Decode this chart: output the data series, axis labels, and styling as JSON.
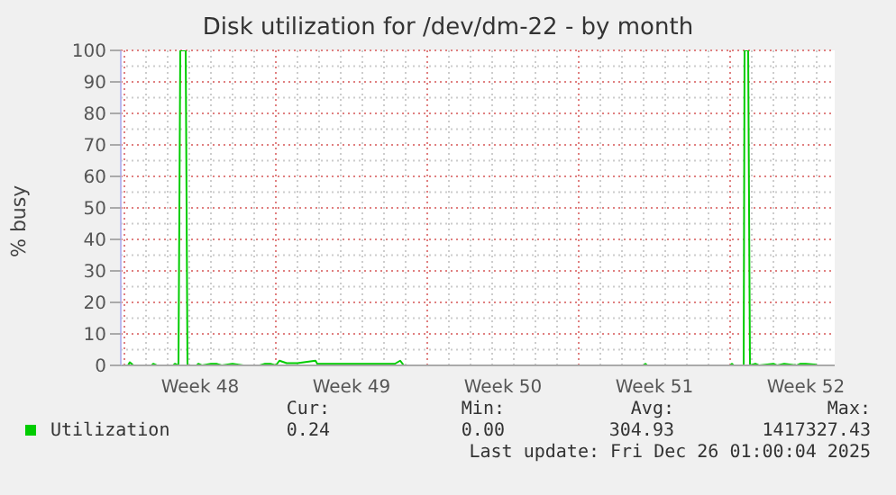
{
  "chart_data": {
    "type": "line",
    "title": "Disk utilization for /dev/dm-22 - by month",
    "ylabel": "% busy",
    "xlim": [
      "2025-11-23T20:00",
      "2025-12-26T20:00"
    ],
    "xticks": [
      {
        "value": "2025-11-27T12:00",
        "label": "Week 48"
      },
      {
        "value": "2025-12-04T12:00",
        "label": "Week 49"
      },
      {
        "value": "2025-12-11T12:00",
        "label": "Week 50"
      },
      {
        "value": "2025-12-18T12:00",
        "label": "Week 51"
      },
      {
        "value": "2025-12-25T12:00",
        "label": "Week 52"
      }
    ],
    "ylim": [
      0,
      100
    ],
    "yticks": [
      0,
      10,
      20,
      30,
      40,
      50,
      60,
      70,
      80,
      90,
      100
    ],
    "grid": true,
    "legend": "bottom",
    "x": [
      "2025-11-23T20:00",
      "2025-11-24T04:00",
      "2025-11-24T06:00",
      "2025-11-24T10:00",
      "2025-11-25T06:00",
      "2025-11-25T08:00",
      "2025-11-25T12:00",
      "2025-11-26T06:00",
      "2025-11-26T08:00",
      "2025-11-26T12:00",
      "2025-11-26T14:00",
      "2025-11-26T20:00",
      "2025-11-26T22:00",
      "2025-11-27T08:00",
      "2025-11-27T10:00",
      "2025-11-27T14:00",
      "2025-11-28T00:00",
      "2025-11-28T06:00",
      "2025-11-28T12:00",
      "2025-11-29T00:00",
      "2025-11-29T12:00",
      "2025-11-30T06:00",
      "2025-11-30T12:00",
      "2025-11-30T18:00",
      "2025-12-01T00:00",
      "2025-12-01T04:00",
      "2025-12-01T12:00",
      "2025-12-02T00:00",
      "2025-12-02T20:00",
      "2025-12-02T22:00",
      "2025-12-03T02:00",
      "2025-12-04T12:00",
      "2025-12-06T12:00",
      "2025-12-06T18:00",
      "2025-12-06T22:00",
      "2025-12-18T00:00",
      "2025-12-18T02:00",
      "2025-12-18T04:00",
      "2025-12-22T00:00",
      "2025-12-22T02:00",
      "2025-12-22T04:00",
      "2025-12-22T15:00",
      "2025-12-22T16:00",
      "2025-12-22T20:00",
      "2025-12-22T22:00",
      "2025-12-23T04:00",
      "2025-12-23T08:00",
      "2025-12-24T00:00",
      "2025-12-24T04:00",
      "2025-12-24T12:00",
      "2025-12-25T02:00",
      "2025-12-25T06:00",
      "2025-12-25T12:00",
      "2025-12-26T00:00"
    ],
    "series": [
      {
        "name": "Utilization",
        "color": "#00cc00",
        "values": [
          0,
          0,
          1,
          0,
          0,
          0.5,
          0,
          0,
          0.5,
          0,
          100,
          100,
          0,
          0,
          0.5,
          0,
          0.5,
          0.5,
          0,
          0.5,
          0,
          0,
          0.5,
          0.5,
          0,
          1.5,
          0.7,
          0.7,
          1.5,
          0.5,
          0.5,
          0.5,
          0.5,
          1.5,
          0,
          0,
          0.5,
          0,
          0,
          0.5,
          0,
          0,
          100,
          100,
          0,
          0.5,
          0,
          0.5,
          0,
          0.5,
          0,
          0.5,
          0.5,
          0.2
        ]
      }
    ],
    "annotations": [
      "Cur:",
      "Min:",
      "Avg:",
      "Max:",
      "0.24",
      "0.00",
      "304.93",
      "1417327.43",
      "Last update: Fri Dec 26 01:00:04 2025"
    ]
  }
}
